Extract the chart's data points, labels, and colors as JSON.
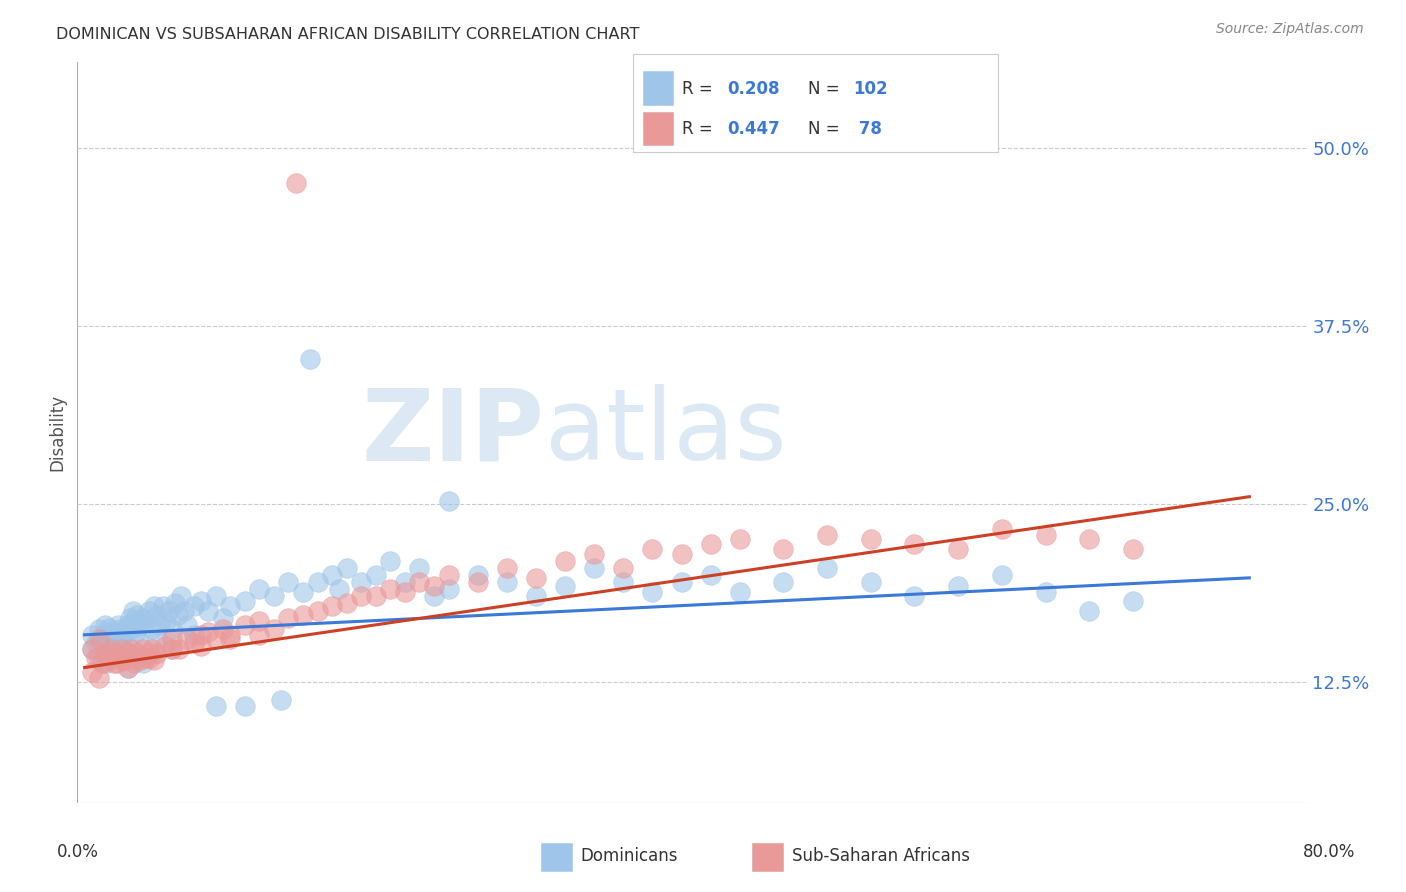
{
  "title": "DOMINICAN VS SUBSAHARAN AFRICAN DISABILITY CORRELATION CHART",
  "source": "Source: ZipAtlas.com",
  "ylabel": "Disability",
  "ytick_labels": [
    "12.5%",
    "25.0%",
    "37.5%",
    "50.0%"
  ],
  "ytick_values": [
    0.125,
    0.25,
    0.375,
    0.5
  ],
  "ymin": 0.04,
  "ymax": 0.56,
  "xmin": -0.005,
  "xmax": 0.84,
  "blue_color": "#9fc5e8",
  "pink_color": "#ea9999",
  "line_blue": "#3c78d8",
  "line_pink": "#cc4125",
  "blue_trendline_x": [
    0.0,
    0.8
  ],
  "blue_trendline_y": [
    0.158,
    0.198
  ],
  "pink_trendline_x": [
    0.0,
    0.8
  ],
  "pink_trendline_y": [
    0.135,
    0.255
  ],
  "dominicans_x": [
    0.005,
    0.008,
    0.01,
    0.012,
    0.013,
    0.014,
    0.015,
    0.016,
    0.017,
    0.018,
    0.019,
    0.02,
    0.021,
    0.022,
    0.023,
    0.024,
    0.025,
    0.026,
    0.027,
    0.028,
    0.03,
    0.031,
    0.032,
    0.033,
    0.034,
    0.035,
    0.036,
    0.037,
    0.038,
    0.04,
    0.042,
    0.044,
    0.046,
    0.048,
    0.05,
    0.052,
    0.054,
    0.056,
    0.058,
    0.06,
    0.062,
    0.064,
    0.066,
    0.068,
    0.07,
    0.075,
    0.08,
    0.085,
    0.09,
    0.095,
    0.1,
    0.11,
    0.12,
    0.13,
    0.14,
    0.15,
    0.16,
    0.17,
    0.175,
    0.18,
    0.19,
    0.2,
    0.21,
    0.22,
    0.23,
    0.24,
    0.25,
    0.27,
    0.29,
    0.31,
    0.33,
    0.35,
    0.37,
    0.39,
    0.41,
    0.43,
    0.45,
    0.48,
    0.51,
    0.54,
    0.57,
    0.6,
    0.63,
    0.66,
    0.69,
    0.72,
    0.005,
    0.01,
    0.015,
    0.02,
    0.025,
    0.03,
    0.035,
    0.04,
    0.05,
    0.06,
    0.075,
    0.09,
    0.11,
    0.135,
    0.155,
    0.25
  ],
  "dominicans_y": [
    0.158,
    0.152,
    0.162,
    0.155,
    0.148,
    0.165,
    0.16,
    0.157,
    0.163,
    0.15,
    0.155,
    0.16,
    0.152,
    0.148,
    0.165,
    0.158,
    0.162,
    0.155,
    0.148,
    0.16,
    0.165,
    0.17,
    0.162,
    0.175,
    0.168,
    0.16,
    0.172,
    0.155,
    0.165,
    0.17,
    0.168,
    0.175,
    0.162,
    0.178,
    0.172,
    0.165,
    0.178,
    0.168,
    0.175,
    0.162,
    0.18,
    0.172,
    0.185,
    0.175,
    0.165,
    0.178,
    0.182,
    0.175,
    0.185,
    0.17,
    0.178,
    0.182,
    0.19,
    0.185,
    0.195,
    0.188,
    0.195,
    0.2,
    0.19,
    0.205,
    0.195,
    0.2,
    0.21,
    0.195,
    0.205,
    0.185,
    0.19,
    0.2,
    0.195,
    0.185,
    0.192,
    0.205,
    0.195,
    0.188,
    0.195,
    0.2,
    0.188,
    0.195,
    0.205,
    0.195,
    0.185,
    0.192,
    0.2,
    0.188,
    0.175,
    0.182,
    0.148,
    0.142,
    0.138,
    0.145,
    0.14,
    0.135,
    0.142,
    0.138,
    0.155,
    0.148,
    0.158,
    0.108,
    0.108,
    0.112,
    0.352,
    0.252
  ],
  "subsaharan_x": [
    0.005,
    0.008,
    0.01,
    0.012,
    0.014,
    0.016,
    0.018,
    0.02,
    0.022,
    0.024,
    0.026,
    0.028,
    0.03,
    0.032,
    0.034,
    0.036,
    0.038,
    0.04,
    0.042,
    0.044,
    0.046,
    0.048,
    0.05,
    0.055,
    0.06,
    0.065,
    0.07,
    0.075,
    0.08,
    0.085,
    0.09,
    0.095,
    0.1,
    0.11,
    0.12,
    0.13,
    0.14,
    0.15,
    0.16,
    0.17,
    0.18,
    0.19,
    0.2,
    0.21,
    0.22,
    0.23,
    0.24,
    0.25,
    0.27,
    0.29,
    0.31,
    0.33,
    0.35,
    0.37,
    0.39,
    0.41,
    0.43,
    0.45,
    0.48,
    0.51,
    0.54,
    0.57,
    0.6,
    0.63,
    0.66,
    0.69,
    0.72,
    0.005,
    0.01,
    0.02,
    0.03,
    0.045,
    0.06,
    0.08,
    0.1,
    0.12,
    0.145
  ],
  "subsaharan_y": [
    0.148,
    0.142,
    0.155,
    0.138,
    0.145,
    0.14,
    0.148,
    0.145,
    0.138,
    0.142,
    0.148,
    0.14,
    0.145,
    0.148,
    0.138,
    0.145,
    0.14,
    0.148,
    0.142,
    0.145,
    0.148,
    0.14,
    0.145,
    0.15,
    0.155,
    0.148,
    0.155,
    0.152,
    0.158,
    0.16,
    0.155,
    0.162,
    0.158,
    0.165,
    0.168,
    0.162,
    0.17,
    0.172,
    0.175,
    0.178,
    0.18,
    0.185,
    0.185,
    0.19,
    0.188,
    0.195,
    0.192,
    0.2,
    0.195,
    0.205,
    0.198,
    0.21,
    0.215,
    0.205,
    0.218,
    0.215,
    0.222,
    0.225,
    0.218,
    0.228,
    0.225,
    0.222,
    0.218,
    0.232,
    0.228,
    0.225,
    0.218,
    0.132,
    0.128,
    0.138,
    0.135,
    0.142,
    0.148,
    0.15,
    0.155,
    0.158,
    0.475
  ]
}
